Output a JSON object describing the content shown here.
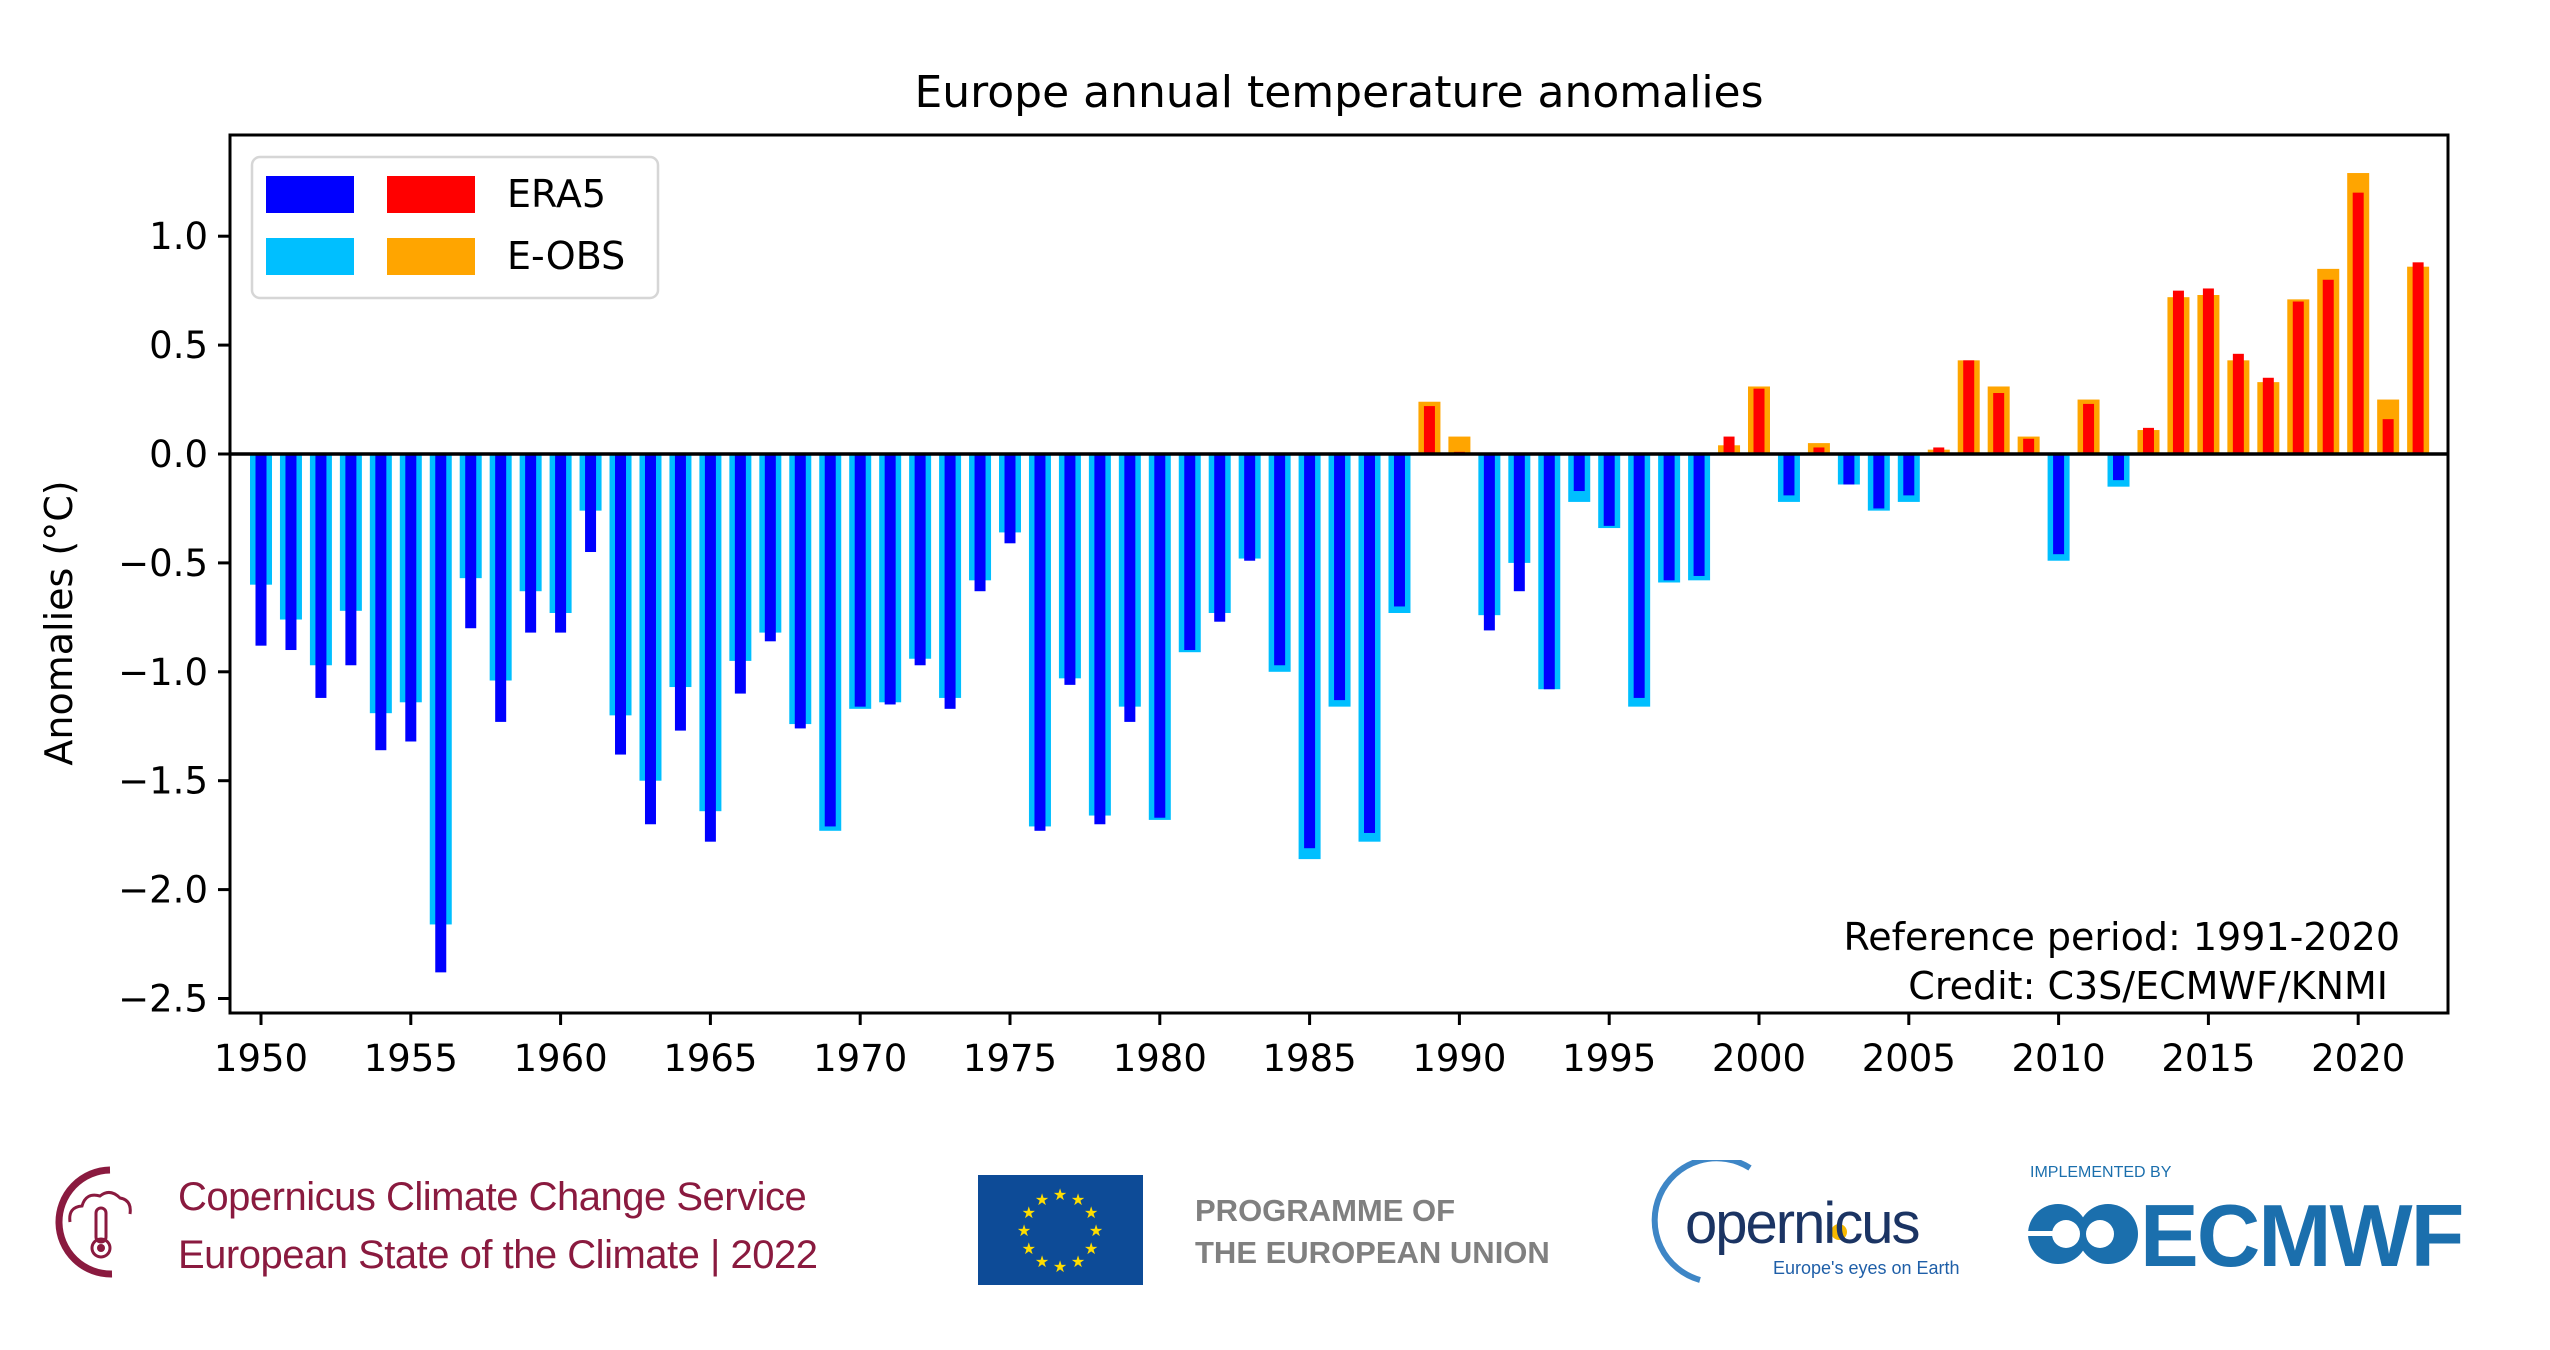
{
  "chart_data": {
    "type": "bar",
    "title": "Europe annual temperature anomalies",
    "xlabel": "",
    "ylabel": "Anomalies (°C)",
    "ylim": [
      -2.58,
      1.43
    ],
    "xlim": [
      1948.5,
      2023.0
    ],
    "yticks": [
      1.0,
      0.5,
      0.0,
      -0.5,
      -1.0,
      -1.5,
      -2.0,
      -2.5
    ],
    "ytick_labels": [
      "1.0",
      "0.5",
      "0.0",
      "−0.5",
      "−1.0",
      "−1.5",
      "−2.0",
      "−2.5"
    ],
    "xticks": [
      1950,
      1955,
      1960,
      1965,
      1970,
      1975,
      1980,
      1985,
      1990,
      1995,
      2000,
      2005,
      2010,
      2015,
      2020
    ],
    "xtick_labels": [
      "1950",
      "1955",
      "1960",
      "1965",
      "1970",
      "1975",
      "1980",
      "1985",
      "1990",
      "1995",
      "2000",
      "2005",
      "2010",
      "2015",
      "2020"
    ],
    "grid": false,
    "legend": {
      "placement": "top-left",
      "entries": [
        {
          "label": "ERA5",
          "negative_color": "#0000ff",
          "positive_color": "#ff0000"
        },
        {
          "label": "E-OBS",
          "negative_color": "#00bfff",
          "positive_color": "#ffa500"
        }
      ]
    },
    "annotations": [
      "Reference period: 1991-2020",
      "Credit: C3S/ECMWF/KNMI"
    ],
    "x": [
      1950,
      1951,
      1952,
      1953,
      1954,
      1955,
      1956,
      1957,
      1958,
      1959,
      1960,
      1961,
      1962,
      1963,
      1964,
      1965,
      1966,
      1967,
      1968,
      1969,
      1970,
      1971,
      1972,
      1973,
      1974,
      1975,
      1976,
      1977,
      1978,
      1979,
      1980,
      1981,
      1982,
      1983,
      1984,
      1985,
      1986,
      1987,
      1988,
      1989,
      1990,
      1991,
      1992,
      1993,
      1994,
      1995,
      1996,
      1997,
      1998,
      1999,
      2000,
      2001,
      2002,
      2003,
      2004,
      2005,
      2006,
      2007,
      2008,
      2009,
      2010,
      2011,
      2012,
      2013,
      2014,
      2015,
      2016,
      2017,
      2018,
      2019,
      2020,
      2021,
      2022
    ],
    "series": [
      {
        "name": "E-OBS",
        "values": [
          -0.6,
          -0.76,
          -0.97,
          -0.72,
          -1.19,
          -1.14,
          -2.16,
          -0.57,
          -1.04,
          -0.63,
          -0.73,
          -0.26,
          -1.2,
          -1.5,
          -1.07,
          -1.64,
          -0.95,
          -0.82,
          -1.24,
          -1.73,
          -1.17,
          -1.14,
          -0.94,
          -1.12,
          -0.58,
          -0.36,
          -1.71,
          -1.03,
          -1.66,
          -1.16,
          -1.68,
          -0.91,
          -0.73,
          -0.48,
          -1.0,
          -1.86,
          -1.16,
          -1.78,
          -0.73,
          0.24,
          0.08,
          -0.74,
          -0.5,
          -1.08,
          -0.22,
          -0.34,
          -1.16,
          -0.59,
          -0.58,
          0.04,
          0.31,
          -0.22,
          0.05,
          -0.14,
          -0.26,
          -0.22,
          0.02,
          0.43,
          0.31,
          0.08,
          -0.49,
          0.25,
          -0.15,
          0.11,
          0.72,
          0.73,
          0.43,
          0.33,
          0.71,
          0.85,
          1.29,
          0.25,
          0.86
        ]
      },
      {
        "name": "ERA5",
        "values": [
          -0.88,
          -0.9,
          -1.12,
          -0.97,
          -1.36,
          -1.32,
          -2.38,
          -0.8,
          -1.23,
          -0.82,
          -0.82,
          -0.45,
          -1.38,
          -1.7,
          -1.27,
          -1.78,
          -1.1,
          -0.86,
          -1.26,
          -1.71,
          -1.16,
          -1.15,
          -0.97,
          -1.17,
          -0.63,
          -0.41,
          -1.73,
          -1.06,
          -1.7,
          -1.23,
          -1.67,
          -0.9,
          -0.77,
          -0.49,
          -0.97,
          -1.81,
          -1.13,
          -1.74,
          -0.7,
          0.22,
          0.01,
          -0.81,
          -0.63,
          -1.08,
          -0.17,
          -0.33,
          -1.12,
          -0.58,
          -0.56,
          0.08,
          0.3,
          -0.19,
          0.03,
          -0.14,
          -0.25,
          -0.19,
          0.03,
          0.43,
          0.28,
          0.07,
          -0.46,
          0.23,
          -0.12,
          0.12,
          0.75,
          0.76,
          0.46,
          0.35,
          0.7,
          0.8,
          1.2,
          0.16,
          0.88
        ]
      }
    ]
  },
  "footer": {
    "c3s_line1": "Copernicus Climate Change Service",
    "c3s_line2": "European State of the Climate | 2022",
    "eu_line1": "PROGRAMME OF",
    "eu_line2": "THE EUROPEAN UNION",
    "copernicus_word": "opernicus",
    "copernicus_tagline": "Europe's eyes on Earth",
    "implemented_by": "IMPLEMENTED BY",
    "ecmwf": "ECMWF"
  },
  "colors": {
    "era5_negative": "#0000ff",
    "era5_positive": "#ff0000",
    "eobs_negative": "#00bfff",
    "eobs_positive": "#ffa500",
    "c3s_brand": "#8a1a3f",
    "eu_blue": "#0d4b97",
    "eu_star": "#ffdd00",
    "ecmwf_blue": "#1b6fad"
  }
}
